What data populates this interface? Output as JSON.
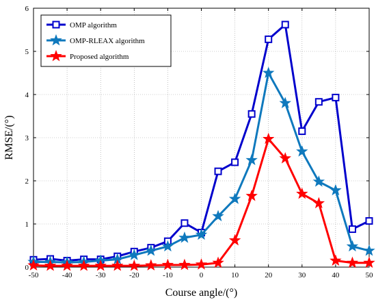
{
  "chart_data": {
    "type": "line",
    "title": "",
    "xlabel": "Course angle/(°)",
    "ylabel": "RMSE/(°)",
    "xlim": [
      -50,
      50
    ],
    "ylim": [
      0,
      6
    ],
    "xticks": [
      -50,
      -40,
      -30,
      -20,
      -10,
      0,
      10,
      20,
      30,
      40,
      50
    ],
    "yticks": [
      0,
      1,
      2,
      3,
      4,
      5,
      6
    ],
    "grid": true,
    "legend_position": "top-left",
    "x": [
      -50,
      -45,
      -40,
      -35,
      -30,
      -25,
      -20,
      -15,
      -10,
      -5,
      0,
      5,
      10,
      15,
      20,
      25,
      30,
      35,
      40,
      45,
      50
    ],
    "series": [
      {
        "name": "OMP algorithm",
        "color": "#0000cc",
        "marker": "square",
        "values": [
          0.17,
          0.19,
          0.15,
          0.18,
          0.18,
          0.25,
          0.36,
          0.45,
          0.6,
          1.02,
          0.8,
          2.22,
          2.43,
          3.55,
          5.28,
          5.62,
          3.15,
          3.83,
          3.93,
          0.88,
          1.07
        ]
      },
      {
        "name": "OMP-RLEAX algorithm",
        "color": "#0f79bd",
        "marker": "star",
        "values": [
          0.12,
          0.12,
          0.11,
          0.12,
          0.15,
          0.18,
          0.28,
          0.38,
          0.48,
          0.68,
          0.75,
          1.18,
          1.58,
          2.48,
          4.5,
          3.8,
          2.68,
          1.98,
          1.78,
          0.48,
          0.38
        ]
      },
      {
        "name": "Proposed algorithm",
        "color": "#ff0000",
        "marker": "star",
        "values": [
          0.04,
          0.03,
          0.03,
          0.03,
          0.03,
          0.03,
          0.03,
          0.04,
          0.05,
          0.05,
          0.06,
          0.1,
          0.62,
          1.65,
          2.97,
          2.52,
          1.7,
          1.48,
          0.15,
          0.1,
          0.1
        ]
      }
    ]
  }
}
